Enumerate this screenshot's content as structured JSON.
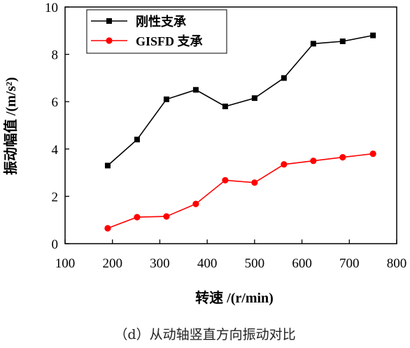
{
  "figure": {
    "caption": "（d）从动轴竖直方向振动对比"
  },
  "chart_data": {
    "type": "line",
    "xlabel": "转速 /(r/min)",
    "ylabel": "振动幅值 /(m/s²)",
    "xlim": [
      100,
      800
    ],
    "ylim": [
      0,
      10
    ],
    "x_ticks": [
      "100",
      "200",
      "300",
      "400",
      "500",
      "600",
      "700",
      "800"
    ],
    "y_ticks": [
      "0",
      "2",
      "4",
      "6",
      "8",
      "10"
    ],
    "grid": false,
    "legend_position": "top-left",
    "series": [
      {
        "name": "刚性支承",
        "marker": "square",
        "color": "#000000",
        "x": [
          190,
          252,
          314,
          376,
          438,
          500,
          562,
          624,
          686,
          750
        ],
        "y": [
          3.3,
          4.4,
          6.1,
          6.5,
          5.8,
          6.15,
          7.0,
          8.45,
          8.55,
          8.8
        ]
      },
      {
        "name": "GISFD 支承",
        "marker": "circle",
        "color": "#ff0000",
        "x": [
          190,
          252,
          314,
          376,
          438,
          500,
          562,
          624,
          686,
          750
        ],
        "y": [
          0.65,
          1.12,
          1.15,
          1.68,
          2.68,
          2.58,
          3.35,
          3.5,
          3.65,
          3.8
        ]
      }
    ]
  }
}
